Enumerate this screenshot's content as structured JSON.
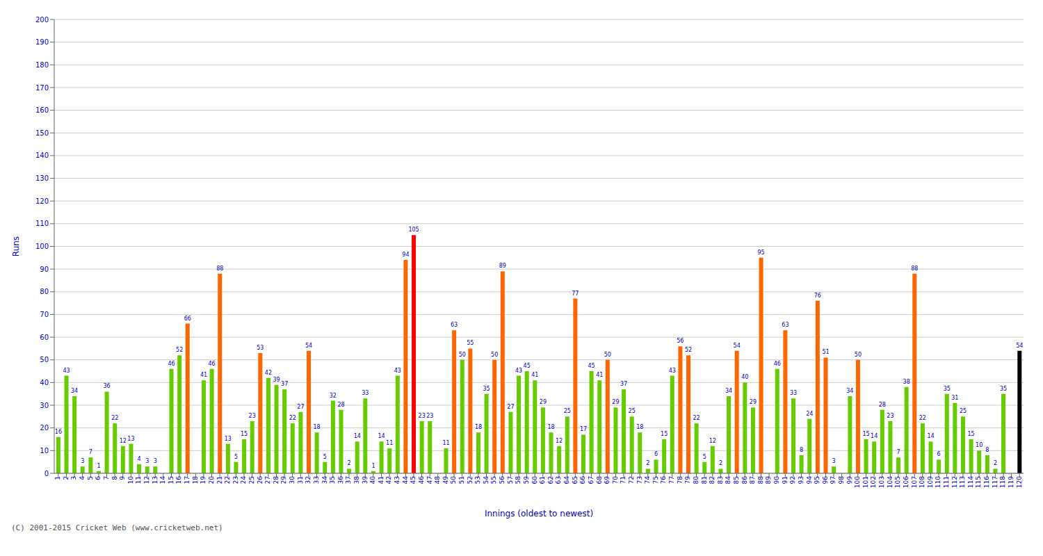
{
  "chart_data": {
    "type": "bar",
    "xlabel": "Innings (oldest to newest)",
    "ylabel": "Runs",
    "categories": [
      "1",
      "2",
      "3",
      "4",
      "5",
      "6",
      "7",
      "8",
      "9",
      "10",
      "11",
      "12",
      "13",
      "14",
      "15",
      "16",
      "17",
      "18",
      "19",
      "20",
      "21",
      "22",
      "23",
      "24",
      "25",
      "26",
      "27",
      "28",
      "29",
      "30",
      "31",
      "32",
      "33",
      "34",
      "35",
      "36",
      "37",
      "38",
      "39",
      "40",
      "41",
      "42",
      "43",
      "44",
      "45",
      "46",
      "47",
      "48",
      "49",
      "50",
      "51",
      "52",
      "53",
      "54",
      "55",
      "56",
      "57",
      "58",
      "59",
      "60",
      "61",
      "62",
      "63",
      "64",
      "65",
      "66",
      "67",
      "68",
      "69",
      "70",
      "71",
      "72",
      "73",
      "74",
      "75",
      "76",
      "77",
      "78",
      "79",
      "80",
      "81",
      "82",
      "83",
      "84",
      "85",
      "86",
      "87",
      "88",
      "89",
      "90",
      "91",
      "92",
      "93",
      "94",
      "95",
      "96",
      "97",
      "98",
      "99",
      "100",
      "101",
      "102",
      "103",
      "104",
      "105",
      "106",
      "107",
      "108",
      "109",
      "110",
      "111",
      "112",
      "113",
      "114",
      "115",
      "116",
      "117",
      "118",
      "119",
      "120"
    ],
    "values": [
      16,
      43,
      34,
      3,
      7,
      1,
      36,
      22,
      12,
      13,
      4,
      3,
      3,
      0,
      46,
      52,
      66,
      0,
      41,
      46,
      88,
      13,
      5,
      15,
      23,
      53,
      42,
      39,
      37,
      22,
      27,
      54,
      18,
      5,
      32,
      28,
      2,
      14,
      33,
      1,
      14,
      11,
      43,
      94,
      105,
      23,
      23,
      0,
      11,
      63,
      50,
      55,
      18,
      35,
      50,
      89,
      27,
      43,
      45,
      41,
      29,
      18,
      12,
      25,
      77,
      17,
      45,
      41,
      50,
      29,
      37,
      25,
      18,
      2,
      6,
      15,
      43,
      56,
      52,
      22,
      5,
      12,
      2,
      34,
      54,
      40,
      29,
      95,
      0,
      46,
      63,
      33,
      8,
      24,
      76,
      51,
      3,
      0,
      34,
      50,
      15,
      14,
      28,
      23,
      7,
      38,
      88,
      22,
      14,
      6,
      35,
      31,
      25,
      15,
      10,
      8,
      2,
      35,
      0,
      54
    ],
    "colors": [
      "#66cc00",
      "#66cc00",
      "#66cc00",
      "#66cc00",
      "#66cc00",
      "#66cc00",
      "#66cc00",
      "#66cc00",
      "#66cc00",
      "#66cc00",
      "#66cc00",
      "#66cc00",
      "#66cc00",
      "#66cc00",
      "#66cc00",
      "#66cc00",
      "#ff6600",
      "#66cc00",
      "#66cc00",
      "#66cc00",
      "#ff6600",
      "#66cc00",
      "#66cc00",
      "#66cc00",
      "#66cc00",
      "#ff6600",
      "#66cc00",
      "#66cc00",
      "#66cc00",
      "#66cc00",
      "#66cc00",
      "#ff6600",
      "#66cc00",
      "#66cc00",
      "#66cc00",
      "#66cc00",
      "#66cc00",
      "#66cc00",
      "#66cc00",
      "#66cc00",
      "#66cc00",
      "#66cc00",
      "#66cc00",
      "#ff6600",
      "#ff0000",
      "#66cc00",
      "#66cc00",
      "#66cc00",
      "#66cc00",
      "#ff6600",
      "#66cc00",
      "#ff6600",
      "#66cc00",
      "#66cc00",
      "#ff6600",
      "#ff6600",
      "#66cc00",
      "#66cc00",
      "#66cc00",
      "#66cc00",
      "#66cc00",
      "#66cc00",
      "#66cc00",
      "#66cc00",
      "#ff6600",
      "#66cc00",
      "#66cc00",
      "#66cc00",
      "#ff6600",
      "#66cc00",
      "#66cc00",
      "#66cc00",
      "#66cc00",
      "#66cc00",
      "#66cc00",
      "#66cc00",
      "#66cc00",
      "#ff6600",
      "#ff6600",
      "#66cc00",
      "#66cc00",
      "#66cc00",
      "#66cc00",
      "#66cc00",
      "#ff6600",
      "#66cc00",
      "#66cc00",
      "#ff6600",
      "#66cc00",
      "#66cc00",
      "#ff6600",
      "#66cc00",
      "#66cc00",
      "#66cc00",
      "#ff6600",
      "#ff6600",
      "#66cc00",
      "#66cc00",
      "#66cc00",
      "#ff6600",
      "#66cc00",
      "#66cc00",
      "#66cc00",
      "#66cc00",
      "#66cc00",
      "#66cc00",
      "#ff6600",
      "#66cc00",
      "#66cc00",
      "#66cc00",
      "#66cc00",
      "#66cc00",
      "#66cc00",
      "#66cc00",
      "#66cc00",
      "#66cc00",
      "#66cc00",
      "#66cc00",
      "#ff6600"
    ],
    "ylim": [
      0,
      200
    ],
    "yticks": [
      0,
      10,
      20,
      30,
      40,
      50,
      60,
      70,
      80,
      90,
      100,
      110,
      120,
      130,
      140,
      150,
      160,
      170,
      180,
      190,
      200
    ],
    "grid": true,
    "data_labels": true,
    "annotations": [
      "(C) 2001-2015 Cricket Web (www.cricketweb.net)"
    ]
  }
}
